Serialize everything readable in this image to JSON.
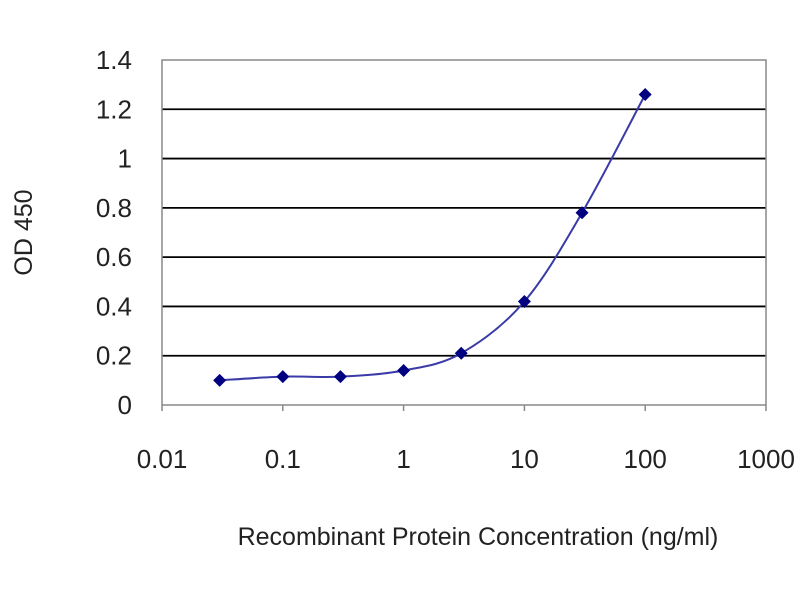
{
  "chart_data": {
    "type": "line",
    "title": "",
    "xlabel": "Recombinant Protein Concentration (ng/ml)",
    "ylabel": "OD 450",
    "x_scale": "log",
    "xlim": [
      0.01,
      1000
    ],
    "ylim": [
      0,
      1.4
    ],
    "x_ticks": [
      "0.01",
      "0.1",
      "1",
      "10",
      "100",
      "1000"
    ],
    "y_ticks": [
      "0",
      "0.2",
      "0.4",
      "0.6",
      "0.8",
      "1",
      "1.2",
      "1.4"
    ],
    "grid": "horizontal",
    "legend": "none",
    "series": [
      {
        "x": [
          0.03,
          0.1,
          0.3,
          1,
          3,
          10,
          30,
          100
        ],
        "y": [
          0.1,
          0.115,
          0.115,
          0.14,
          0.21,
          0.42,
          0.78,
          1.26
        ]
      }
    ],
    "colors": {
      "line": "#3a3aa8",
      "marker": "#000080",
      "grid": "#000000",
      "frame": "#888888"
    }
  }
}
